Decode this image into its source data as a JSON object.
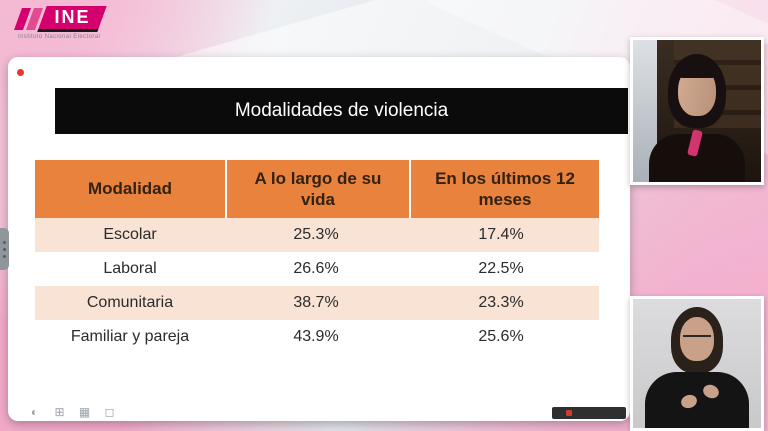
{
  "logo": {
    "text": "INE",
    "subtitle": "Instituto Nacional Electoral"
  },
  "slide": {
    "title": "Modalidades de violencia",
    "table": {
      "headers": [
        "Modalidad",
        "A lo largo de su vida",
        "En los últimos 12 meses"
      ],
      "rows": [
        {
          "modalidad": "Escolar",
          "vida": "25.3%",
          "meses": "17.4%"
        },
        {
          "modalidad": "Laboral",
          "vida": "26.6%",
          "meses": "22.5%"
        },
        {
          "modalidad": "Comunitaria",
          "vida": "38.7%",
          "meses": "23.3%"
        },
        {
          "modalidad": "Familiar  y pareja",
          "vida": "43.9%",
          "meses": "25.6%"
        }
      ]
    }
  },
  "icons": {
    "toolbar": [
      {
        "name": "globe-icon",
        "glyph": "◐"
      },
      {
        "name": "grid-icon",
        "glyph": "⊞"
      },
      {
        "name": "apps-icon",
        "glyph": "▦"
      },
      {
        "name": "window-icon",
        "glyph": "◻"
      }
    ]
  },
  "video": {
    "tiles": [
      {
        "name": "speaker-video"
      },
      {
        "name": "interpreter-video"
      }
    ]
  },
  "colors": {
    "accent_pink": "#d4006e",
    "header_orange": "#e8823d",
    "row_pink": "#f8e3d5",
    "title_bar_black": "#0b0b0b"
  }
}
